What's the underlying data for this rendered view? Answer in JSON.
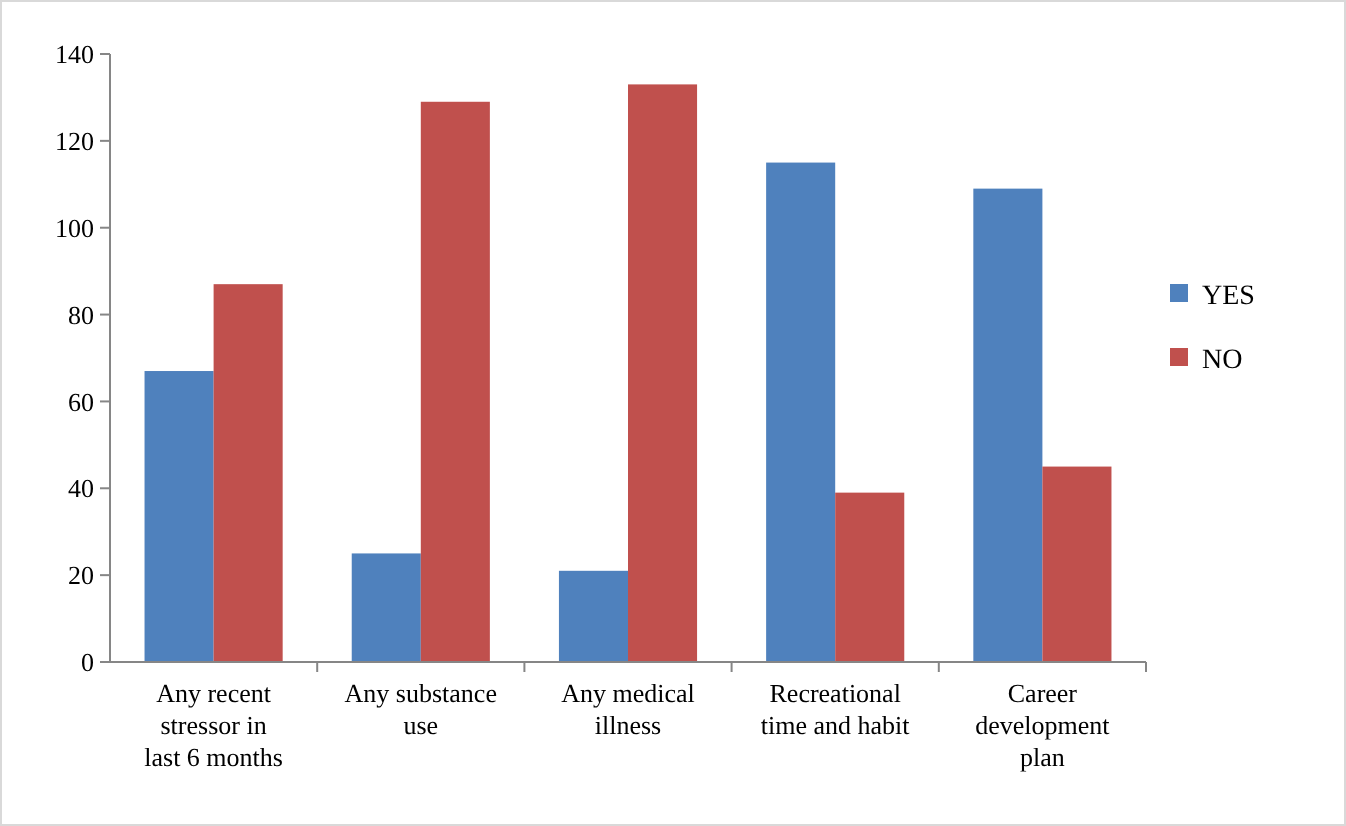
{
  "chart_data": {
    "type": "bar",
    "categories": [
      "Any recent stressor in last 6 months",
      "Any substance use",
      "Any medical illness",
      "Recreational time and habit",
      "Career development plan"
    ],
    "series": [
      {
        "name": "YES",
        "color": "#4f81bd",
        "values": [
          67,
          25,
          21,
          115,
          109
        ]
      },
      {
        "name": "NO",
        "color": "#c0504d",
        "values": [
          87,
          129,
          133,
          39,
          45
        ]
      }
    ],
    "ylim": [
      0,
      140
    ],
    "yticks": [
      0,
      20,
      40,
      60,
      80,
      100,
      120,
      140
    ],
    "grid": false,
    "legend": "right"
  }
}
